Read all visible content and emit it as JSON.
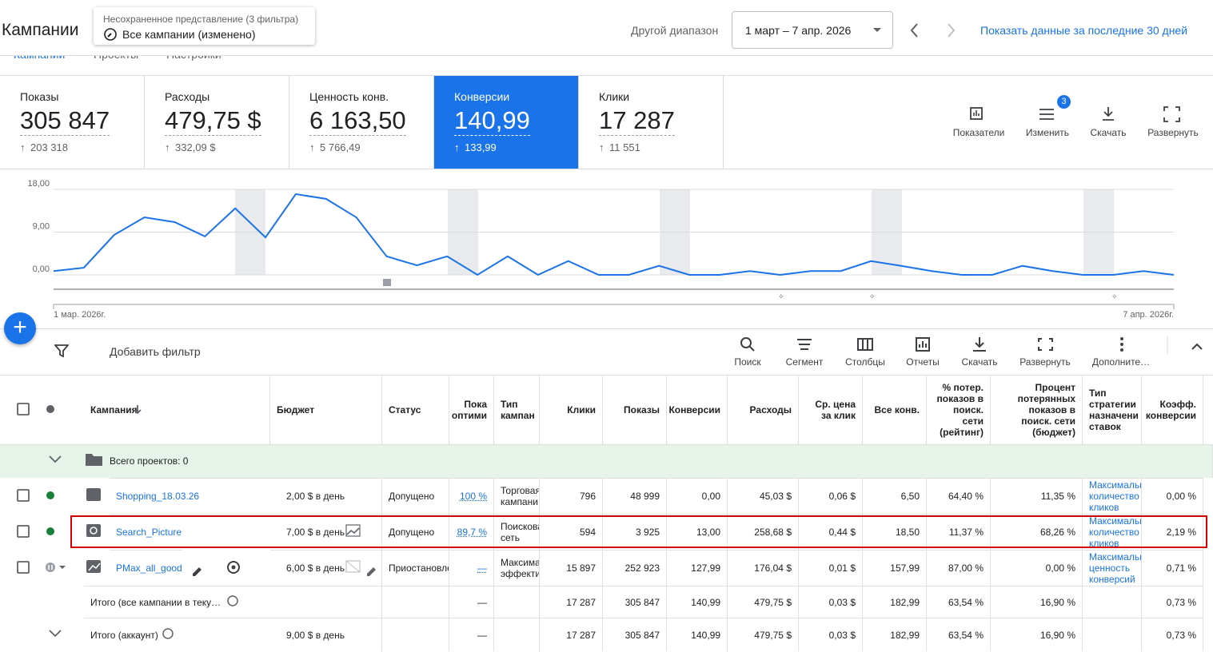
{
  "header": {
    "title": "Кампании",
    "view_label": "Несохраненное представление (3 фильтра)",
    "view_name": "Все кампании (изменено)",
    "range_label": "Другой диапазон",
    "range": "1 март – 7 апр. 2026",
    "show_last": "Показать данные за последние 30 дней"
  },
  "tabs": [
    "Кампании",
    "Проекты",
    "Настройки"
  ],
  "metrics": [
    {
      "label": "Показы",
      "value": "305 847",
      "delta": "203 318"
    },
    {
      "label": "Расходы",
      "value": "479,75 $",
      "delta": "332,09 $"
    },
    {
      "label": "Ценность конв.",
      "value": "6 163,50",
      "delta": "5 766,49"
    },
    {
      "label": "Конверсии",
      "value": "140,99",
      "delta": "133,99"
    },
    {
      "label": "Клики",
      "value": "17 287",
      "delta": "11 551"
    }
  ],
  "metric_tools": {
    "items": [
      "Показатели",
      "Изменить",
      "Скачать",
      "Развернуть"
    ],
    "badge": "3"
  },
  "chart_data": {
    "type": "line",
    "categories": [
      "1 мар. 2026г.",
      null,
      null,
      null,
      null,
      null,
      null,
      null,
      null,
      null,
      null,
      null,
      null,
      null,
      null,
      null,
      null,
      null,
      null,
      null,
      null,
      null,
      null,
      null,
      null,
      null,
      null,
      null,
      null,
      null,
      null,
      null,
      null,
      null,
      null,
      null,
      null,
      "7 апр. 2026г."
    ],
    "series": [
      {
        "name": "Конверсии",
        "color": "#1a73e8",
        "values": [
          0.8,
          1.5,
          8.4,
          12.1,
          11.1,
          8.1,
          14,
          7.9,
          17,
          16,
          12.1,
          3.9,
          2,
          3.9,
          0,
          3.9,
          0,
          2.9,
          0,
          0,
          1.9,
          0,
          0,
          0.8,
          0,
          0.8,
          0.8,
          2.9,
          1.9,
          0.8,
          0,
          0,
          1.9,
          0.8,
          0,
          0,
          0.8,
          0
        ]
      }
    ],
    "ylim": [
      0,
      18
    ],
    "yticks": [
      {
        "value": 0,
        "label": "0,00"
      },
      {
        "value": 9,
        "label": "9,00"
      },
      {
        "value": 18,
        "label": "18,00"
      }
    ],
    "grid": true
  },
  "filter": {
    "add": "Добавить фильтр",
    "tools": [
      "Поиск",
      "Сегмент",
      "Столбцы",
      "Отчеты",
      "Скачать",
      "Развернуть",
      "Дополните…"
    ]
  },
  "table": {
    "headers": [
      "Кампания",
      "Бюджет",
      "Статус",
      "Пока оптими",
      "Тип кампан",
      "Клики",
      "Показы",
      "Конверсии",
      "Расходы",
      "Ср. цена за клик",
      "Все конв.",
      "% потер. показов в поиск. сети (рейтинг)",
      "Процент потерянных показов в поиск. сети (бюджет)",
      "Тип стратегии назначени ставок",
      "Коэфф. конверсии"
    ],
    "group": "Всего проектов: 0",
    "rows": [
      [
        "Shopping_18.03.26",
        "2,00 $ в день",
        "Допущено",
        "100 %",
        "Торговая кампани",
        "796",
        "48 999",
        "0,00",
        "45,03 $",
        "0,06 $",
        "6,50",
        "64,40 %",
        "11,35 %",
        "Максимальное количество кликов",
        "0,00 %"
      ],
      [
        "Search_Picture",
        "7,00 $ в день",
        "Допущено",
        "89,7 %",
        "Поисковая сеть",
        "594",
        "3 925",
        "13,00",
        "258,68 $",
        "0,44 $",
        "18,50",
        "11,37 %",
        "68,26 %",
        "Максимальное количество кликов",
        "2,19 %"
      ],
      [
        "PMax_all_goods_KZ",
        "6,00 $ в день",
        "Приостановлено",
        "—",
        "Максимальная эффективность",
        "15 897",
        "252 923",
        "127,99",
        "176,04 $",
        "0,01 $",
        "157,99",
        "87,00 %",
        "0,00 %",
        "Максимальная ценность конверсий",
        "0,71 %"
      ],
      [
        "Итого (все кампании в теку…",
        null,
        null,
        "—",
        null,
        "17 287",
        "305 847",
        "140,99",
        "479,75 $",
        "0,03 $",
        "182,99",
        "63,54 %",
        "16,90 %",
        null,
        "0,73 %"
      ],
      [
        "Итого (аккаунт)",
        "9,00 $ в день",
        null,
        "—",
        null,
        "17 287",
        "305 847",
        "140,99",
        "479,75 $",
        "0,03 $",
        "182,99",
        "63,54 %",
        "16,90 %",
        null,
        "0,73 %"
      ]
    ]
  }
}
